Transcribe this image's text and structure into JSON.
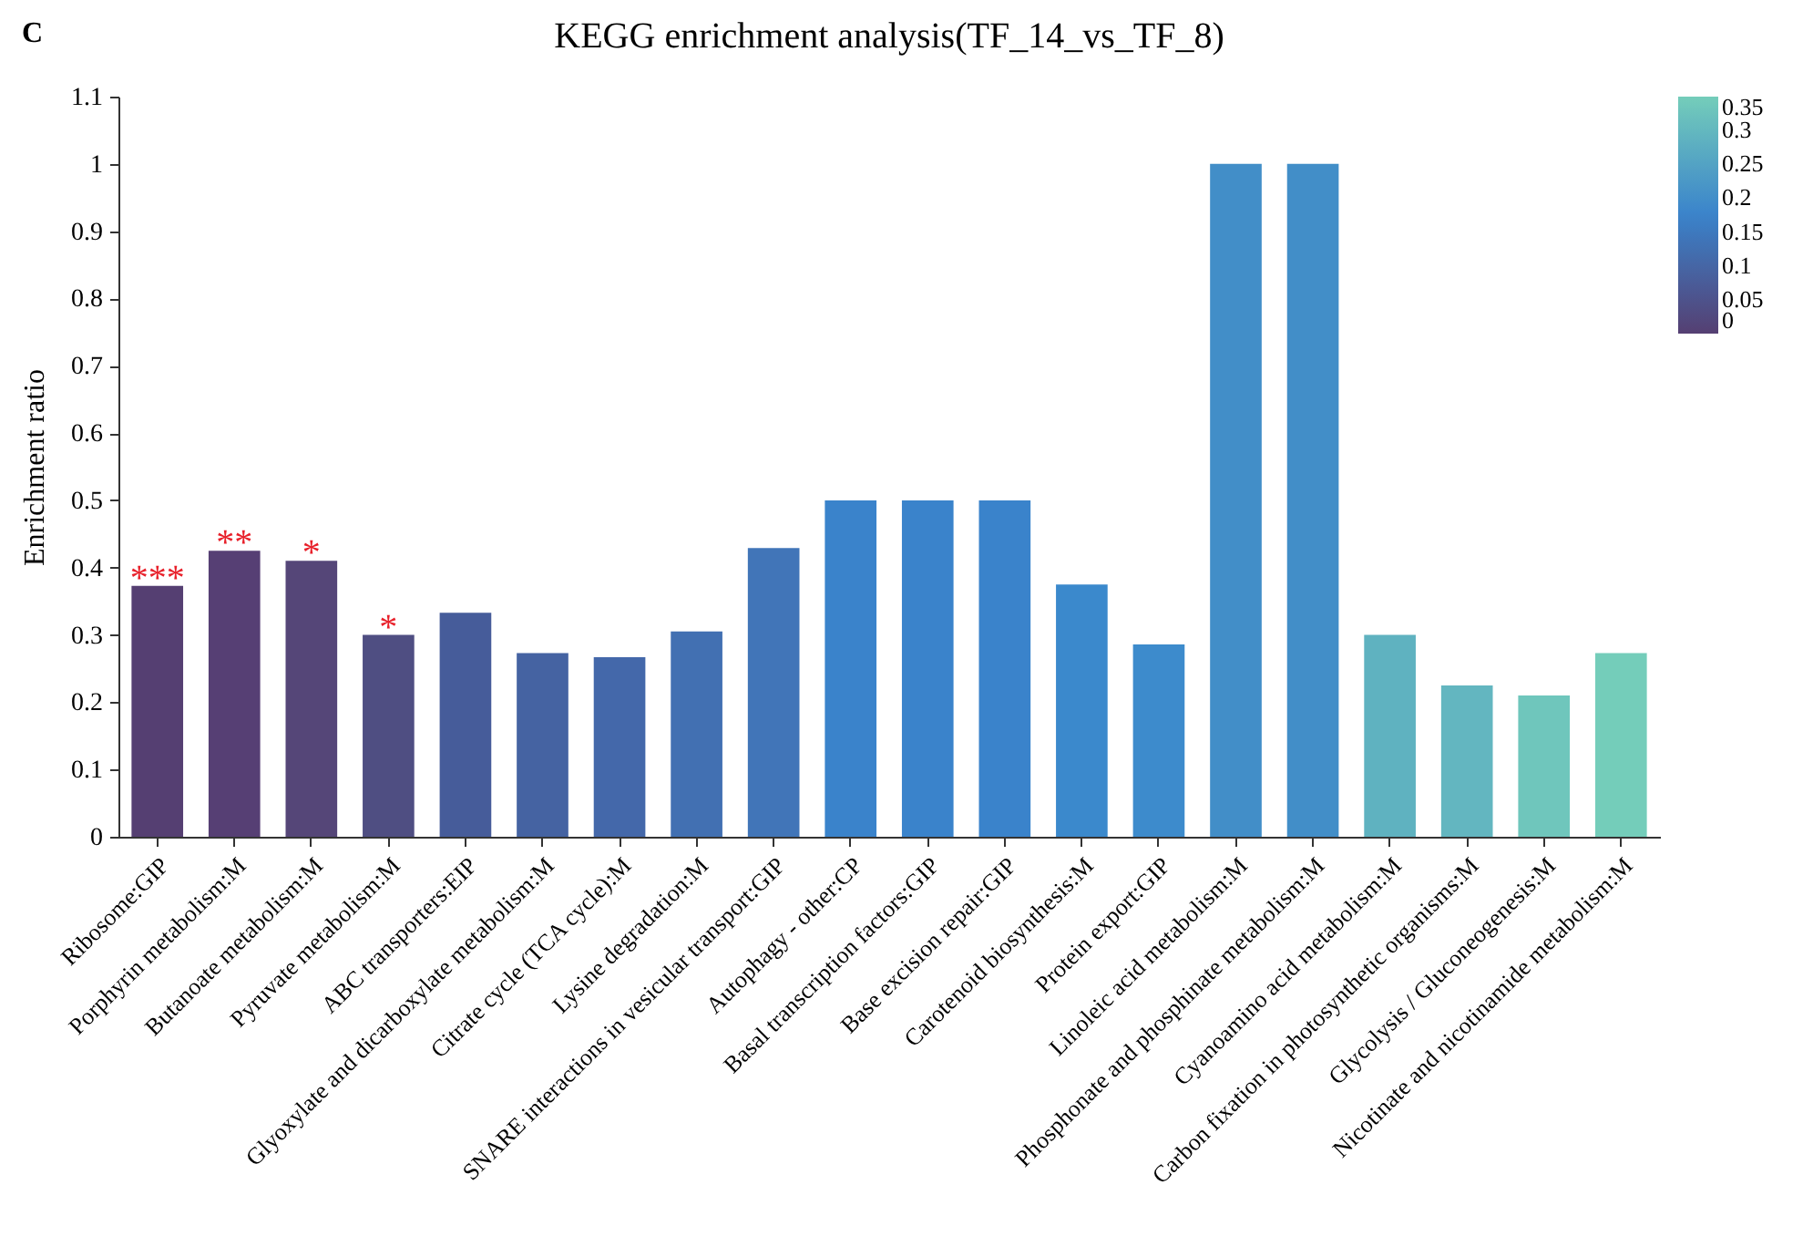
{
  "chart_data": {
    "type": "bar",
    "title": "KEGG enrichment analysis(TF_14_vs_TF_8)",
    "ylabel": "Enrichment ratio",
    "categories": [
      "Ribosome:GIP",
      "Porphyrin metabolism:M",
      "Butanoate metabolism:M",
      "Pyruvate metabolism:M",
      "ABC transporters:EIP",
      "Glyoxylate and dicarboxylate metabolism:M",
      "Citrate cycle (TCA cycle):M",
      "Lysine degradation:M",
      "SNARE interactions in vesicular transport:GIP",
      "Autophagy - other:CP",
      "Basal transcription factors:GIP",
      "Base excision repair:GIP",
      "Carotenoid biosynthesis:M",
      "Protein export:GIP",
      "Linoleic acid metabolism:M",
      "Phosphonate and phosphinate metabolism:M",
      "Cyanoamino acid metabolism:M",
      "Carbon fixation in photosynthetic organisms:M",
      "Glycolysis / Gluconeogenesis:M",
      "Nicotinate and nicotinamide metabolism:M"
    ],
    "values": [
      0.373,
      0.425,
      0.41,
      0.3,
      0.333,
      0.273,
      0.267,
      0.305,
      0.429,
      0.5,
      0.5,
      0.5,
      0.375,
      0.286,
      1,
      1,
      0.3,
      0.225,
      0.21,
      0.273
    ],
    "colors": [
      "#553f72",
      "#563f74",
      "#554678",
      "#4f4e82",
      "#465c9a",
      "#4563a2",
      "#4468aa",
      "#4270b2",
      "#4175b8",
      "#3a83cb",
      "#3a83cb",
      "#3a83cb",
      "#3b89cc",
      "#3d8bcc",
      "#428ec8",
      "#428ec8",
      "#5fb2c0",
      "#63b6c0",
      "#6fc6bc",
      "#74cdba"
    ],
    "ylim": [
      0,
      1.1
    ],
    "yticks": [
      0,
      0.1,
      0.2,
      0.3,
      0.4,
      0.5,
      0.6,
      0.7,
      0.8,
      0.9,
      1,
      1.1
    ],
    "clim": [
      0,
      0.35
    ],
    "cticks": [
      0,
      0.05,
      0.1,
      0.15,
      0.2,
      0.25,
      0.3,
      0.35
    ],
    "grid": false,
    "annotations": [
      "C",
      {
        "text": "***",
        "x": "Ribosome:GIP",
        "y": 0.373
      },
      {
        "text": "**",
        "x": "Porphyrin metabolism:M",
        "y": 0.425
      },
      {
        "text": "*",
        "x": "Butanoate metabolism:M",
        "y": 0.41
      },
      {
        "text": "*",
        "x": "Pyruvate metabolism:M",
        "y": 0.3
      }
    ]
  }
}
